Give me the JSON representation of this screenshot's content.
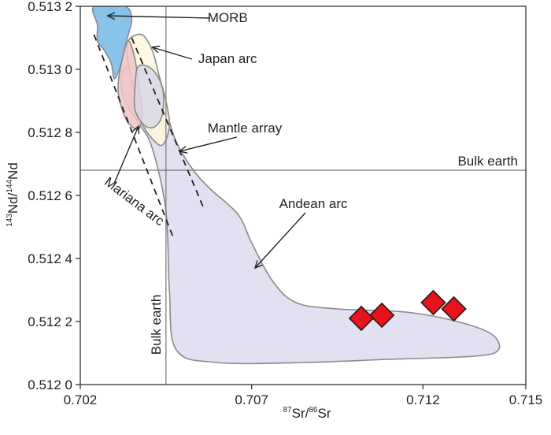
{
  "chart_data": {
    "type": "scatter",
    "xlabel": {
      "sup1": "87",
      "main1": "Sr/",
      "sup2": "86",
      "main2": "Sr"
    },
    "ylabel": {
      "sup1": "143",
      "main1": "Nd/",
      "sup2": "144",
      "main2": "Nd"
    },
    "xlim": [
      0.702,
      0.715
    ],
    "ylim": [
      0.512,
      0.5132
    ],
    "x_ticks": [
      {
        "value": 0.702,
        "label": "0.702"
      },
      {
        "value": 0.707,
        "label": "0.707"
      },
      {
        "value": 0.712,
        "label": "0.712"
      },
      {
        "value": 0.715,
        "label": "0.715"
      }
    ],
    "y_ticks": [
      {
        "value": 0.512,
        "label": "0.512 0"
      },
      {
        "value": 0.5122,
        "label": "0.512 2"
      },
      {
        "value": 0.5124,
        "label": "0.512 4"
      },
      {
        "value": 0.5126,
        "label": "0.512 6"
      },
      {
        "value": 0.5128,
        "label": "0.512 8"
      },
      {
        "value": 0.513,
        "label": "0.513 0"
      },
      {
        "value": 0.5132,
        "label": "0.513 2"
      }
    ],
    "reference_lines": [
      {
        "orientation": "horizontal",
        "value": 0.51268,
        "label": "Bulk earth"
      },
      {
        "orientation": "vertical",
        "value": 0.7045,
        "label": "Bulk earth"
      }
    ],
    "series": [
      {
        "marker": "diamond",
        "color": "#e8141b",
        "points": [
          {
            "x": 0.7102,
            "y": 0.51221
          },
          {
            "x": 0.7108,
            "y": 0.51222
          },
          {
            "x": 0.7123,
            "y": 0.51226
          },
          {
            "x": 0.7129,
            "y": 0.51224
          }
        ]
      }
    ],
    "fields": [
      {
        "label": "Andean arc",
        "color": "#dcdcee",
        "label_pos": {
          "x": 0.7088,
          "y": 0.51256
        },
        "arrow_to": {
          "x": 0.7071,
          "y": 0.51237
        },
        "outline": [
          [
            0.7032,
            0.51297
          ],
          [
            0.7034,
            0.51301
          ],
          [
            0.7039,
            0.51297
          ],
          [
            0.7043,
            0.51293
          ],
          [
            0.7045,
            0.51287
          ],
          [
            0.7048,
            0.51277
          ],
          [
            0.7053,
            0.51268
          ],
          [
            0.7058,
            0.51262
          ],
          [
            0.7066,
            0.51254
          ],
          [
            0.707,
            0.51245
          ],
          [
            0.7076,
            0.51233
          ],
          [
            0.7083,
            0.51226
          ],
          [
            0.7095,
            0.51224
          ],
          [
            0.7115,
            0.51223
          ],
          [
            0.713,
            0.5122
          ],
          [
            0.714,
            0.51216
          ],
          [
            0.7142,
            0.51211
          ],
          [
            0.7135,
            0.51209
          ],
          [
            0.711,
            0.51208
          ],
          [
            0.7085,
            0.51207
          ],
          [
            0.706,
            0.51207
          ],
          [
            0.7048,
            0.51211
          ],
          [
            0.7046,
            0.5123
          ],
          [
            0.7045,
            0.51255
          ],
          [
            0.7041,
            0.51275
          ],
          [
            0.7037,
            0.51283
          ],
          [
            0.7033,
            0.5129
          ],
          [
            0.7032,
            0.51297
          ]
        ]
      },
      {
        "label": "MORB",
        "color": "#74b8e6",
        "label_pos": {
          "x": 0.7063,
          "y": 0.51315
        },
        "arrow_to": {
          "x": 0.7028,
          "y": 0.51317
        },
        "outline": [
          [
            0.7024,
            0.5132
          ],
          [
            0.7033,
            0.5132
          ],
          [
            0.7035,
            0.51316
          ],
          [
            0.7034,
            0.51311
          ],
          [
            0.7033,
            0.51307
          ],
          [
            0.7032,
            0.51302
          ],
          [
            0.703,
            0.51297
          ],
          [
            0.7029,
            0.51302
          ],
          [
            0.7027,
            0.51306
          ],
          [
            0.7025,
            0.51309
          ],
          [
            0.7025,
            0.51314
          ],
          [
            0.7024,
            0.5132
          ]
        ]
      },
      {
        "label": "Japan arc",
        "color": "#fcf7dc",
        "label_pos": {
          "x": 0.7063,
          "y": 0.51302
        },
        "arrow_to": {
          "x": 0.7041,
          "y": 0.51307
        },
        "outline": [
          [
            0.7034,
            0.51309
          ],
          [
            0.7038,
            0.51311
          ],
          [
            0.7041,
            0.51306
          ],
          [
            0.7043,
            0.51298
          ],
          [
            0.7045,
            0.5129
          ],
          [
            0.7046,
            0.51282
          ],
          [
            0.7044,
            0.51276
          ],
          [
            0.7041,
            0.51278
          ],
          [
            0.7038,
            0.51283
          ],
          [
            0.7036,
            0.51292
          ],
          [
            0.7034,
            0.51302
          ],
          [
            0.7034,
            0.51309
          ]
        ]
      },
      {
        "label": "Mariana arc",
        "color": "#f0c4c6",
        "label_pos": {
          "x": 0.7035,
          "y": 0.51257
        },
        "arrow_to": {
          "x": 0.7037,
          "y": 0.51282
        },
        "label_rotation": 37,
        "outline": [
          [
            0.7034,
            0.51309
          ],
          [
            0.7036,
            0.51303
          ],
          [
            0.7037,
            0.51295
          ],
          [
            0.7038,
            0.51286
          ],
          [
            0.7037,
            0.51281
          ],
          [
            0.7034,
            0.51283
          ],
          [
            0.7032,
            0.51288
          ],
          [
            0.7031,
            0.51294
          ],
          [
            0.7032,
            0.51302
          ],
          [
            0.7034,
            0.51309
          ]
        ]
      },
      {
        "label": "",
        "color": "#d8d8e6",
        "outline": [
          [
            0.7037,
            0.51301
          ],
          [
            0.7041,
            0.513
          ],
          [
            0.7044,
            0.51294
          ],
          [
            0.7044,
            0.51286
          ],
          [
            0.7042,
            0.51282
          ],
          [
            0.7039,
            0.51282
          ],
          [
            0.7036,
            0.51287
          ],
          [
            0.7036,
            0.51295
          ],
          [
            0.7037,
            0.51301
          ]
        ]
      }
    ],
    "trend_lines": [
      {
        "label": "Mantle array",
        "label_pos": {
          "x": 0.7068,
          "y": 0.5128
        },
        "arrow_to": {
          "x": 0.7049,
          "y": 0.51274
        },
        "points": [
          [
            0.7035,
            0.5131
          ],
          [
            0.7056,
            0.51256
          ]
        ]
      },
      {
        "label": "",
        "points": [
          [
            0.7024,
            0.51311
          ],
          [
            0.7047,
            0.51247
          ]
        ]
      }
    ]
  }
}
